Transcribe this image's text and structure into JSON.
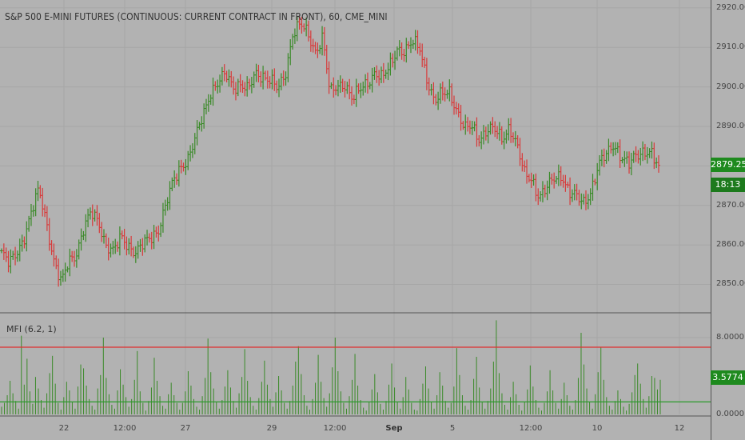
{
  "title": "S&P 500 E-MINI FUTURES (CONTINUOUS: CURRENT CONTRACT IN FRONT), 60, CME_MINI",
  "indicator_label": "MFI (6.2, 1)",
  "last_price": "2879.25",
  "countdown": "18:13",
  "mfi_last": "3.5774",
  "price_ticks": [
    "2920.00",
    "2910.00",
    "2900.00",
    "2890.00",
    "2880.00",
    "2870.00",
    "2860.00",
    "2850.00"
  ],
  "mfi_ticks": [
    "8.0000",
    "0.0000"
  ],
  "x_ticks": [
    "22",
    "12:00",
    "27",
    "29",
    "12:00",
    "Sep",
    "5",
    "12:00",
    "10",
    "12"
  ],
  "colors": {
    "background": "#b2b2b2",
    "grid": "#a6a6a6",
    "up": "#3a8a28",
    "down": "#d83a3a",
    "upper_line": "#e03030",
    "lower_line": "#2a9a2a",
    "badge_green": "#1e8a1e",
    "badge_dark": "#1c7a1c"
  },
  "chart_data": [
    {
      "type": "ohlc",
      "title": "S&P 500 E-MINI FUTURES (CONTINUOUS: CURRENT CONTRACT IN FRONT), 60, CME_MINI",
      "ylim": [
        2843,
        2922
      ],
      "grid": true,
      "last_value": 2879.25,
      "approx_closes": [
        2858,
        2855,
        2858,
        2862,
        2868,
        2874,
        2866,
        2856,
        2850,
        2856,
        2858,
        2864,
        2868,
        2866,
        2860,
        2858,
        2862,
        2860,
        2858,
        2860,
        2862,
        2864,
        2870,
        2876,
        2880,
        2882,
        2887,
        2893,
        2899,
        2901,
        2903,
        2900,
        2901,
        2899,
        2903,
        2903,
        2902,
        2899,
        2903,
        2914,
        2916,
        2913,
        2909,
        2913,
        2898,
        2900,
        2901,
        2897,
        2899,
        2901,
        2904,
        2902,
        2905,
        2910,
        2909,
        2911,
        2910,
        2902,
        2896,
        2898,
        2899,
        2894,
        2889,
        2890,
        2887,
        2889,
        2889,
        2887,
        2890,
        2885,
        2878,
        2877,
        2872,
        2874,
        2877,
        2878,
        2873,
        2872,
        2871,
        2874,
        2880,
        2883,
        2886,
        2882,
        2880,
        2883,
        2884,
        2883,
        2879
      ]
    },
    {
      "type": "bar",
      "title": "MFI (6.2, 1)",
      "ylim": [
        0,
        10.5
      ],
      "upper_band": 7.0,
      "lower_band": 1.3,
      "last_value": 3.5774,
      "values": [
        0.8,
        1.2,
        2.0,
        3.5,
        2.2,
        1.4,
        0.6,
        8.2,
        3.1,
        5.8,
        2.4,
        1.1,
        3.9,
        2.7,
        1.5,
        0.7,
        2.2,
        4.3,
        6.1,
        3.2,
        1.2,
        0.5,
        1.8,
        3.4,
        2.5,
        1.3,
        0.6,
        2.9,
        5.2,
        4.8,
        3.0,
        1.6,
        0.9,
        0.5,
        2.7,
        4.1,
        8.0,
        3.8,
        2.1,
        1.0,
        0.6,
        2.5,
        4.7,
        3.1,
        1.8,
        0.8,
        1.6,
        3.6,
        6.6,
        2.4,
        1.2,
        0.4,
        1.4,
        2.8,
        5.9,
        3.5,
        1.9,
        0.9,
        0.6,
        2.1,
        3.3,
        2.0,
        1.2,
        0.5,
        1.2,
        2.4,
        4.5,
        3.0,
        1.6,
        0.8,
        0.5,
        1.9,
        3.8,
        7.9,
        4.4,
        2.7,
        1.3,
        0.6,
        1.5,
        2.9,
        4.6,
        2.8,
        1.4,
        0.7,
        2.2,
        3.9,
        6.8,
        3.5,
        1.8,
        0.9,
        0.5,
        1.7,
        3.4,
        5.6,
        3.1,
        1.6,
        0.8,
        2.3,
        4.0,
        2.5,
        1.2,
        0.6,
        1.4,
        3.0,
        5.5,
        7.1,
        4.2,
        2.0,
        0.9,
        0.5,
        1.6,
        3.3,
        6.2,
        3.4,
        1.7,
        0.8,
        2.2,
        4.9,
        8.0,
        4.5,
        2.4,
        1.2,
        0.6,
        1.9,
        3.6,
        6.3,
        3.0,
        1.5,
        0.7,
        0.4,
        1.3,
        2.6,
        4.2,
        2.3,
        1.1,
        0.5,
        1.4,
        3.1,
        5.3,
        2.8,
        1.3,
        0.6,
        1.8,
        3.9,
        2.6,
        1.2,
        0.5,
        0.4,
        1.6,
        3.2,
        5.0,
        2.7,
        1.3,
        0.6,
        2.0,
        4.4,
        3.0,
        1.4,
        0.7,
        1.2,
        2.9,
        6.9,
        4.1,
        2.0,
        0.9,
        0.5,
        1.5,
        3.7,
        6.0,
        2.8,
        1.3,
        0.6,
        1.4,
        2.7,
        5.5,
        9.8,
        4.3,
        2.2,
        1.0,
        0.5,
        1.8,
        3.4,
        2.1,
        1.0,
        0.4,
        1.3,
        2.6,
        5.1,
        2.9,
        1.5,
        0.7,
        0.4,
        1.2,
        2.4,
        4.6,
        2.5,
        1.2,
        0.6,
        1.6,
        3.3,
        2.0,
        0.9,
        0.5,
        1.5,
        3.8,
        8.5,
        5.2,
        2.7,
        1.3,
        0.6,
        2.1,
        4.4,
        7.0,
        3.6,
        1.8,
        0.9,
        0.5,
        1.4,
        2.5,
        1.6,
        0.8,
        0.4,
        1.1,
        2.3,
        4.1,
        5.3,
        3.2,
        1.6,
        0.7,
        1.9,
        4.0,
        3.8,
        2.6,
        3.6
      ]
    }
  ]
}
